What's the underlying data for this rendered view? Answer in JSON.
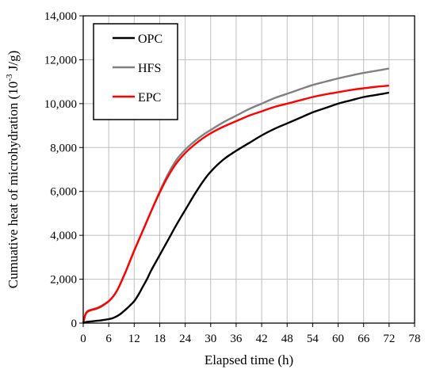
{
  "chart_data": {
    "type": "line",
    "title": "",
    "xlabel": "Elapsed time (h)",
    "ylabel_main": "Cumuative heat of microhydration (10",
    "ylabel_exp": "-3",
    "ylabel_unit": " J/g)",
    "xlim": [
      0,
      78
    ],
    "ylim": [
      0,
      14000
    ],
    "x_ticks": [
      0,
      6,
      12,
      18,
      24,
      30,
      36,
      42,
      48,
      54,
      60,
      66,
      72,
      78
    ],
    "y_ticks": [
      0,
      2000,
      4000,
      6000,
      8000,
      10000,
      12000,
      14000
    ],
    "y_tick_labels": [
      "0",
      "2,000",
      "4,000",
      "6,000",
      "8,000",
      "10,000",
      "12,000",
      "14,000"
    ],
    "grid": true,
    "legend_position": "top-left",
    "series": [
      {
        "name": "OPC",
        "color": "#000000",
        "x": [
          0,
          0.5,
          1,
          2,
          3,
          4,
          5,
          6,
          7,
          8,
          9,
          10,
          11,
          12,
          13,
          14,
          15,
          16,
          18,
          20,
          22,
          24,
          26,
          28,
          30,
          33,
          36,
          39,
          42,
          45,
          48,
          51,
          54,
          57,
          60,
          63,
          66,
          69,
          72
        ],
        "y": [
          0,
          40,
          60,
          80,
          100,
          120,
          150,
          180,
          230,
          320,
          450,
          620,
          800,
          1000,
          1300,
          1650,
          2000,
          2400,
          3100,
          3800,
          4500,
          5150,
          5800,
          6400,
          6900,
          7450,
          7850,
          8200,
          8550,
          8850,
          9100,
          9350,
          9600,
          9800,
          10000,
          10150,
          10300,
          10400,
          10500
        ]
      },
      {
        "name": "HFS",
        "color": "#808080",
        "x": [
          0,
          0.5,
          1,
          2,
          3,
          4,
          5,
          6,
          7,
          8,
          9,
          10,
          12,
          14,
          16,
          18,
          20,
          22,
          24,
          26,
          28,
          30,
          33,
          36,
          39,
          42,
          45,
          48,
          51,
          54,
          57,
          60,
          63,
          66,
          69,
          72
        ],
        "y": [
          0,
          400,
          550,
          620,
          680,
          760,
          870,
          1000,
          1200,
          1500,
          1900,
          2350,
          3300,
          4200,
          5100,
          6000,
          6800,
          7450,
          7900,
          8250,
          8550,
          8800,
          9150,
          9450,
          9750,
          10000,
          10250,
          10450,
          10650,
          10850,
          11000,
          11150,
          11280,
          11400,
          11500,
          11600
        ]
      },
      {
        "name": "EPC",
        "color": "#ff0000",
        "x": [
          0,
          0.5,
          1,
          2,
          3,
          4,
          5,
          6,
          7,
          8,
          9,
          10,
          12,
          14,
          16,
          18,
          20,
          22,
          24,
          26,
          28,
          30,
          33,
          36,
          39,
          42,
          45,
          48,
          51,
          54,
          57,
          60,
          63,
          66,
          69,
          72
        ],
        "y": [
          0,
          380,
          520,
          600,
          650,
          730,
          850,
          1000,
          1200,
          1500,
          1900,
          2350,
          3300,
          4200,
          5100,
          5950,
          6700,
          7300,
          7750,
          8100,
          8400,
          8650,
          8950,
          9200,
          9450,
          9650,
          9850,
          10000,
          10150,
          10300,
          10420,
          10520,
          10620,
          10700,
          10770,
          10820
        ]
      }
    ]
  }
}
